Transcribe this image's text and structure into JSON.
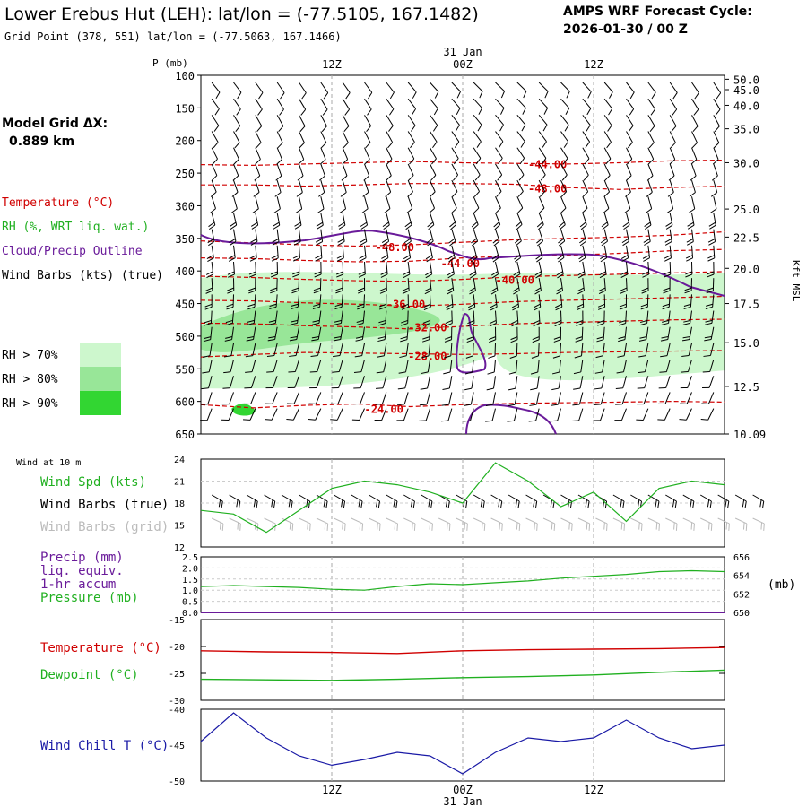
{
  "header": {
    "title": "Lower Erebus Hut (LEH):  lat/lon = (-77.5105, 167.1482)",
    "grid_point": "Grid Point (378, 551) lat/lon = (-77.5063, 167.1466)",
    "forecast_label": "AMPS WRF Forecast Cycle:",
    "forecast_cycle": "2026-01-30 / 00  Z"
  },
  "time_axis": {
    "top_date": "31 Jan",
    "bottom_date": "31 Jan",
    "labels": [
      "12Z",
      "00Z",
      "12Z"
    ],
    "hours": [
      12,
      24,
      36
    ]
  },
  "sidebar": {
    "model_grid_label": "Model Grid ΔX:",
    "model_grid_value": "0.889 km",
    "legend": [
      {
        "label": "Temperature (°C)",
        "color": "#d00000"
      },
      {
        "label": "RH (%, WRT liq. wat.)",
        "color": "#20b020"
      },
      {
        "label": "Cloud/Precip Outline",
        "color": "#6a1b9a"
      },
      {
        "label": "Wind Barbs (kts) (true)",
        "color": "#000000"
      }
    ],
    "rh_keys": [
      {
        "label": "RH > 70%",
        "color": "#cdf7cd"
      },
      {
        "label": "RH > 80%",
        "color": "#98e698"
      },
      {
        "label": "RH > 90%",
        "color": "#32d632"
      }
    ]
  },
  "chart_data": [
    {
      "type": "cross-section",
      "name": "sounding",
      "ylabel": "P (mb)",
      "y2label": "Kft MSL",
      "pressure_levels": [
        100,
        150,
        200,
        250,
        300,
        350,
        400,
        450,
        500,
        550,
        600,
        650
      ],
      "height_labels": [
        {
          "p": 106,
          "label": "50.0"
        },
        {
          "p": 122,
          "label": "45.0"
        },
        {
          "p": 146,
          "label": "40.0"
        },
        {
          "p": 182,
          "label": "35.0"
        },
        {
          "p": 234,
          "label": "30.0"
        },
        {
          "p": 305,
          "label": "25.0"
        },
        {
          "p": 348,
          "label": "22.5"
        },
        {
          "p": 396,
          "label": "20.0"
        },
        {
          "p": 450,
          "label": "17.5"
        },
        {
          "p": 510,
          "label": "15.0"
        },
        {
          "p": 577,
          "label": "12.5"
        },
        {
          "p": 650,
          "label": "10.09"
        }
      ],
      "temperature_contours": [
        {
          "label": "-44.00",
          "p": [
            237,
            238,
            236,
            234,
            232,
            234,
            235,
            236,
            234,
            231,
            230
          ],
          "label_pos": [
            30,
            237
          ]
        },
        {
          "label": "-48.00",
          "p": [
            268,
            268,
            270,
            268,
            266,
            266,
            267,
            272,
            275,
            272,
            270
          ],
          "label_pos": [
            30,
            274
          ]
        },
        {
          "label": "-48.00",
          "p": [
            354,
            357,
            360,
            362,
            360,
            356,
            352,
            350,
            348,
            345,
            340
          ],
          "label_pos": [
            16,
            364
          ]
        },
        {
          "label": "-44.00",
          "p": [
            380,
            381,
            384,
            386,
            385,
            380,
            377,
            376,
            373,
            369,
            367
          ],
          "label_pos": [
            22,
            389
          ]
        },
        {
          "label": "-40.00",
          "p": [
            408,
            410,
            413,
            415,
            416,
            413,
            409,
            407,
            405,
            403,
            401
          ],
          "label_pos": [
            27,
            414
          ]
        },
        {
          "label": "-36.00",
          "p": [
            445,
            446,
            449,
            451,
            454,
            451,
            447,
            445,
            443,
            441,
            439
          ],
          "label_pos": [
            17,
            451
          ]
        },
        {
          "label": "-32.00",
          "p": [
            480,
            481,
            484,
            486,
            489,
            485,
            481,
            479,
            477,
            475,
            474
          ],
          "label_pos": [
            19,
            487
          ]
        },
        {
          "label": "-28.00",
          "p": [
            532,
            528,
            525,
            526,
            527,
            528,
            527,
            525,
            524,
            523,
            522
          ],
          "label_pos": [
            19,
            531
          ]
        },
        {
          "label": "-24.00",
          "p": [
            605,
            610,
            606,
            604,
            608,
            605,
            603,
            602,
            601,
            600,
            601
          ],
          "label_pos": [
            15,
            612
          ]
        }
      ],
      "rh_regions": [
        {
          "threshold": "70%",
          "pressure_range": [
            400,
            580
          ],
          "time_range": [
            0,
            48
          ]
        },
        {
          "threshold": "80%",
          "pressure_range": [
            430,
            520
          ],
          "time_range": [
            0,
            24
          ]
        },
        {
          "threshold": "90%",
          "pressure_range": [
            600,
            625
          ],
          "time_range": [
            2,
            5
          ]
        }
      ]
    },
    {
      "type": "line",
      "name": "wind",
      "title": "Wind at 10 m",
      "ylim": [
        12,
        24
      ],
      "yticks": [
        12,
        15,
        18,
        21,
        24
      ],
      "series": [
        {
          "name": "Wind Spd (kts)",
          "color": "#20b020",
          "x": [
            0,
            3,
            6,
            9,
            12,
            15,
            18,
            21,
            24,
            27,
            30,
            33,
            36,
            39,
            42,
            45,
            48
          ],
          "values": [
            17,
            16.5,
            14,
            17,
            20,
            21,
            20.5,
            19.5,
            18,
            23.5,
            21,
            17.5,
            19.5,
            15.5,
            20,
            21,
            20.5
          ]
        }
      ],
      "legend": [
        "Wind Spd (kts)",
        "Wind Barbs (true)",
        "Wind Barbs (grid)"
      ]
    },
    {
      "type": "line",
      "name": "precip-pressure",
      "ylim_left": [
        0,
        2.5
      ],
      "yticks_left": [
        "0.0",
        "0.5",
        "1.0",
        "1.5",
        "2.0",
        "2.5"
      ],
      "ylim_right": [
        650,
        656
      ],
      "yticks_right": [
        "650",
        "652",
        "654",
        "656"
      ],
      "y2label": "(mb)",
      "series": [
        {
          "name": "Pressure (mb)",
          "color": "#20b020",
          "x": [
            0,
            3,
            6,
            9,
            12,
            15,
            18,
            21,
            24,
            27,
            30,
            33,
            36,
            39,
            42,
            45,
            48
          ],
          "values": [
            652.8,
            652.9,
            652.8,
            652.7,
            652.5,
            652.4,
            652.8,
            653.1,
            653.0,
            653.2,
            653.4,
            653.7,
            653.9,
            654.1,
            654.4,
            654.5,
            654.4
          ]
        },
        {
          "name": "Precip (mm) liq. equiv. 1-hr accum",
          "color": "#6a1b9a",
          "x": [
            0,
            48
          ],
          "values": [
            0.0,
            0.0
          ]
        }
      ],
      "legend": [
        "Precip (mm)",
        "liq. equiv.",
        "1-hr accum",
        "Pressure (mb)"
      ]
    },
    {
      "type": "line",
      "name": "temperature",
      "ylim": [
        -30,
        -15
      ],
      "yticks": [
        -30,
        -25,
        -20,
        -15
      ],
      "series": [
        {
          "name": "Temperature (°C)",
          "color": "#d00000",
          "x": [
            0,
            6,
            12,
            18,
            24,
            30,
            36,
            42,
            48
          ],
          "values": [
            -20.8,
            -21.0,
            -21.1,
            -21.3,
            -20.8,
            -20.6,
            -20.5,
            -20.4,
            -20.2
          ]
        },
        {
          "name": "Dewpoint (°C)",
          "color": "#20b020",
          "x": [
            0,
            6,
            12,
            18,
            24,
            30,
            36,
            42,
            48
          ],
          "values": [
            -26.1,
            -26.2,
            -26.3,
            -26.1,
            -25.8,
            -25.6,
            -25.3,
            -24.8,
            -24.4
          ]
        }
      ],
      "legend": [
        "Temperature (°C)",
        "Dewpoint (°C)"
      ]
    },
    {
      "type": "line",
      "name": "wind-chill",
      "ylim": [
        -50,
        -40
      ],
      "yticks": [
        -50,
        -45,
        -40
      ],
      "series": [
        {
          "name": "Wind Chill T (°C)",
          "color": "#1a1aa6",
          "x": [
            0,
            3,
            6,
            9,
            12,
            15,
            18,
            21,
            24,
            27,
            30,
            33,
            36,
            39,
            42,
            45,
            48
          ],
          "values": [
            -44.5,
            -40.5,
            -44,
            -46.5,
            -47.8,
            -47,
            -46,
            -46.5,
            -49,
            -46,
            -44,
            -44.5,
            -44,
            -41.5,
            -44,
            -45.5,
            -45
          ]
        }
      ],
      "legend": [
        "Wind Chill T (°C)"
      ]
    }
  ]
}
